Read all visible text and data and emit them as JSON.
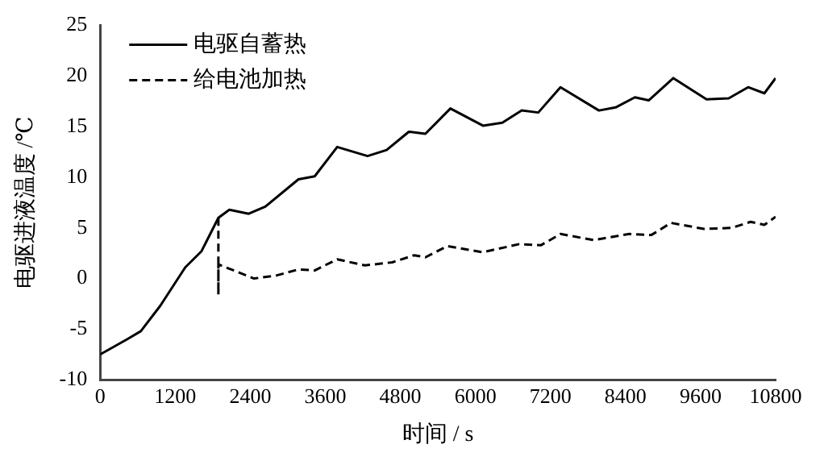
{
  "chart_data": {
    "type": "line",
    "xlabel": "时间 / s",
    "ylabel": "电驱进液温度 /℃",
    "xlim": [
      0,
      10800
    ],
    "xticks": [
      0,
      1200,
      2400,
      3600,
      4800,
      6000,
      7200,
      8400,
      9600,
      10800
    ],
    "ylim": [
      -10,
      25
    ],
    "yticks": [
      -10,
      -5,
      0,
      5,
      10,
      15,
      20,
      25
    ],
    "grid": false,
    "legend": "top left",
    "marker": "none",
    "series": [
      {
        "name": "电驱自蓄热",
        "color": "#000000",
        "line_style": "solid",
        "x": [
          0,
          430,
          650,
          960,
          1360,
          1620,
          1890,
          2065,
          2375,
          2640,
          3170,
          3430,
          3790,
          4275,
          4580,
          4935,
          5200,
          5600,
          6120,
          6430,
          6740,
          7005,
          7360,
          7975,
          8240,
          8550,
          8770,
          9165,
          9695,
          10050,
          10360,
          10620,
          10800
        ],
        "values": [
          -7.5,
          -6.0,
          -5.2,
          -2.7,
          1.1,
          2.7,
          6.0,
          6.8,
          6.4,
          7.1,
          9.8,
          10.1,
          13.0,
          12.1,
          12.7,
          14.5,
          14.3,
          16.8,
          15.1,
          15.4,
          16.6,
          16.4,
          18.9,
          16.6,
          16.9,
          17.9,
          17.6,
          19.8,
          17.7,
          17.8,
          18.9,
          18.3,
          19.8
        ]
      },
      {
        "name": "给电池加热",
        "color": "#000000",
        "line_style": "dashed",
        "x": [
          1890,
          1890,
          1890,
          2460,
          2815,
          3170,
          3430,
          3790,
          4230,
          4670,
          5020,
          5200,
          5550,
          6120,
          6700,
          7050,
          7360,
          7890,
          8460,
          8815,
          9125,
          9655,
          10095,
          10400,
          10620,
          10800
        ],
        "values": [
          6.0,
          -1.6,
          1.4,
          0.0,
          0.3,
          0.9,
          0.8,
          1.9,
          1.3,
          1.6,
          2.3,
          2.1,
          3.2,
          2.6,
          3.4,
          3.3,
          4.4,
          3.8,
          4.4,
          4.3,
          5.5,
          4.9,
          5.0,
          5.6,
          5.3,
          6.1
        ]
      }
    ]
  }
}
